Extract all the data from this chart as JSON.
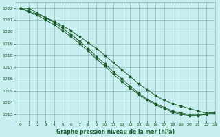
{
  "title": "Graphe pression niveau de la mer (hPa)",
  "bg_color": "#c8eef0",
  "grid_color": "#8bbcbe",
  "line_color": "#1a5c2a",
  "xlim": [
    -0.5,
    23
  ],
  "ylim": [
    1012.5,
    1022.5
  ],
  "yticks": [
    1013,
    1014,
    1015,
    1016,
    1017,
    1018,
    1019,
    1020,
    1021,
    1022
  ],
  "xticks": [
    0,
    1,
    2,
    3,
    4,
    5,
    6,
    7,
    8,
    9,
    10,
    11,
    12,
    13,
    14,
    15,
    16,
    17,
    18,
    19,
    20,
    21,
    22,
    23
  ],
  "hours": [
    0,
    1,
    2,
    3,
    4,
    5,
    6,
    7,
    8,
    9,
    10,
    11,
    12,
    13,
    14,
    15,
    16,
    17,
    18,
    19,
    20,
    21,
    22,
    23
  ],
  "line1": [
    1022.0,
    1021.8,
    1021.5,
    1021.2,
    1020.9,
    1020.5,
    1020.1,
    1019.6,
    1019.1,
    1018.6,
    1018.0,
    1017.4,
    1016.8,
    1016.2,
    1015.6,
    1015.1,
    1014.6,
    1014.2,
    1013.9,
    1013.7,
    1013.5,
    1013.3,
    1013.1,
    1013.2
  ],
  "line2": [
    1022.0,
    1021.7,
    1021.4,
    1021.0,
    1020.6,
    1020.1,
    1019.6,
    1019.0,
    1018.4,
    1017.7,
    1017.1,
    1016.4,
    1015.8,
    1015.2,
    1014.7,
    1014.2,
    1013.8,
    1013.5,
    1013.2,
    1013.0,
    1012.9,
    1012.9,
    1013.0,
    1013.1
  ],
  "line3": [
    1022.0,
    1022.0,
    1021.6,
    1021.2,
    1020.8,
    1020.3,
    1019.8,
    1019.2,
    1018.6,
    1017.9,
    1017.3,
    1016.6,
    1016.0,
    1015.4,
    1014.8,
    1014.3,
    1013.9,
    1013.6,
    1013.3,
    1013.1,
    1013.0,
    1013.0,
    1013.0,
    1013.2
  ]
}
